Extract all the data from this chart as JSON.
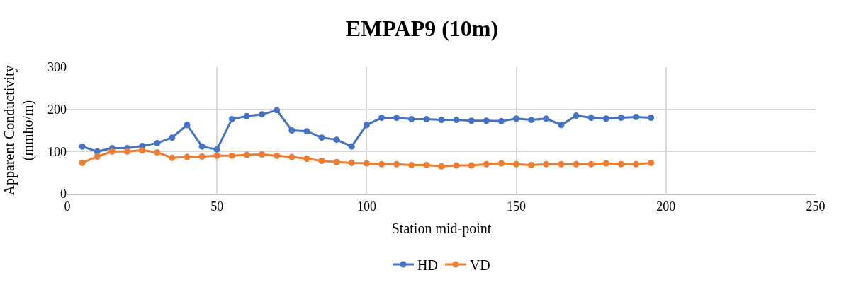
{
  "chart_data": {
    "type": "line",
    "title": "EMPAP9 (10m)",
    "xlabel": "Station mid-point",
    "ylabel": "Apparent Conductivity\n(mmho/m)",
    "x": [
      5,
      10,
      15,
      20,
      25,
      30,
      35,
      40,
      45,
      50,
      55,
      60,
      65,
      70,
      75,
      80,
      85,
      90,
      95,
      100,
      105,
      110,
      115,
      120,
      125,
      130,
      135,
      140,
      145,
      150,
      155,
      160,
      165,
      170,
      175,
      180,
      185,
      190,
      195
    ],
    "series": [
      {
        "name": "HD",
        "color": "#4472c4",
        "values": [
          112,
          100,
          108,
          108,
          113,
          120,
          133,
          163,
          112,
          105,
          177,
          184,
          188,
          198,
          150,
          148,
          133,
          128,
          112,
          163,
          180,
          180,
          177,
          177,
          175,
          175,
          173,
          173,
          172,
          178,
          175,
          178,
          163,
          185,
          180,
          178,
          180,
          182,
          180
        ]
      },
      {
        "name": "VD",
        "color": "#ed7d31",
        "values": [
          73,
          88,
          100,
          100,
          103,
          98,
          85,
          87,
          88,
          90,
          90,
          92,
          93,
          90,
          87,
          83,
          78,
          75,
          73,
          72,
          70,
          70,
          68,
          68,
          65,
          67,
          67,
          70,
          72,
          70,
          68,
          70,
          70,
          70,
          70,
          72,
          70,
          70,
          73
        ]
      }
    ],
    "xlim": [
      0,
      250
    ],
    "xticks": [
      0,
      50,
      100,
      150,
      200,
      250
    ],
    "ylim": [
      0,
      300
    ],
    "yticks": [
      0,
      100,
      200,
      300
    ],
    "grid": true,
    "legend": "bottom",
    "marker": "circle",
    "line_style": "solid"
  }
}
